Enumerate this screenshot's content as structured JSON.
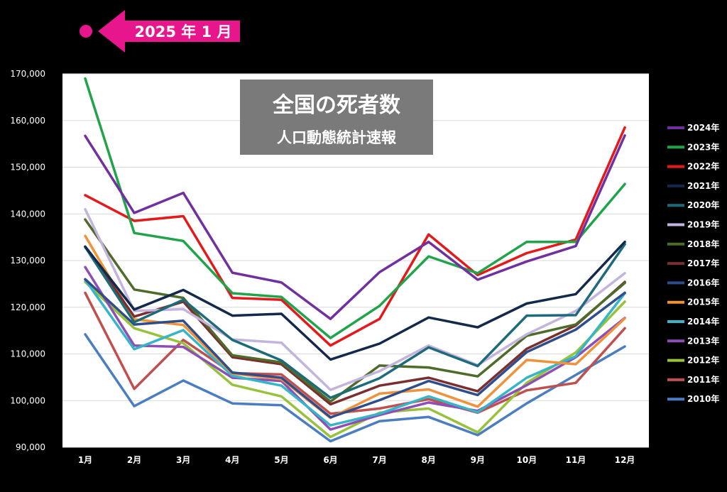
{
  "badge": {
    "text": "2025 年 1 月",
    "color": "#e8168c"
  },
  "chart_data": {
    "type": "line",
    "title": "全国の死者数",
    "subtitle": "人口動態統計速報",
    "categories": [
      "1月",
      "2月",
      "3月",
      "4月",
      "5月",
      "6月",
      "7月",
      "8月",
      "9月",
      "10月",
      "11月",
      "12月"
    ],
    "ylim": [
      90000,
      170000
    ],
    "yticks": [
      "90,000",
      "100,000",
      "110,000",
      "120,000",
      "130,000",
      "140,000",
      "150,000",
      "160,000",
      "170,000"
    ],
    "grid": true,
    "legend_position": "right",
    "series": [
      {
        "name": "2024年",
        "color": "#7030a0",
        "values": [
          156700,
          140200,
          144500,
          127400,
          125300,
          117500,
          127500,
          134000,
          125900,
          129800,
          133100,
          156800
        ]
      },
      {
        "name": "2023年",
        "color": "#1fa44a",
        "values": [
          169000,
          135900,
          134200,
          123000,
          122200,
          113400,
          120300,
          130900,
          127300,
          134000,
          134000,
          146400
        ]
      },
      {
        "name": "2022年",
        "color": "#e3191c",
        "values": [
          144000,
          138500,
          139500,
          122000,
          121600,
          111800,
          117500,
          135600,
          126900,
          131600,
          134500,
          158500
        ]
      },
      {
        "name": "2021年",
        "color": "#13294b",
        "values": [
          133000,
          119500,
          123700,
          118200,
          118600,
          108800,
          112200,
          117800,
          115700,
          120800,
          122800,
          134000
        ]
      },
      {
        "name": "2020年",
        "color": "#1d6b7a",
        "values": [
          132900,
          116800,
          121600,
          113000,
          108600,
          100600,
          104800,
          111400,
          107400,
          118200,
          118300,
          133500
        ]
      },
      {
        "name": "2019年",
        "color": "#c2b4dd",
        "values": [
          141000,
          119200,
          119600,
          113100,
          112400,
          102300,
          106300,
          111800,
          107600,
          114200,
          119200,
          127300
        ]
      },
      {
        "name": "2018年",
        "color": "#4f6b2a",
        "values": [
          138800,
          123800,
          122000,
          109700,
          108200,
          99800,
          107500,
          107100,
          105200,
          113900,
          116300,
          125200
        ]
      },
      {
        "name": "2017年",
        "color": "#7a2e2e",
        "values": [
          132900,
          118000,
          121200,
          109300,
          107800,
          99200,
          103200,
          104900,
          102000,
          111100,
          116100,
          125400
        ]
      },
      {
        "name": "2016年",
        "color": "#2e4d8a",
        "values": [
          126000,
          116300,
          117100,
          106000,
          104900,
          96400,
          100100,
          104200,
          101200,
          110400,
          115200,
          123100
        ]
      },
      {
        "name": "2015年",
        "color": "#f0923a",
        "values": [
          135300,
          117400,
          116200,
          105800,
          104600,
          96300,
          101500,
          102400,
          98700,
          108700,
          107800,
          117600
        ]
      },
      {
        "name": "2014年",
        "color": "#36b4c8",
        "values": [
          125900,
          111000,
          115100,
          105300,
          103200,
          94700,
          97200,
          100900,
          97500,
          104900,
          109500,
          123000
        ]
      },
      {
        "name": "2013年",
        "color": "#8e4fb4",
        "values": [
          128600,
          111800,
          111500,
          104900,
          104200,
          93800,
          96900,
          99600,
          97800,
          103300,
          109300,
          117700
        ]
      },
      {
        "name": "2012年",
        "color": "#98c23c",
        "values": [
          125400,
          115500,
          112300,
          103400,
          100900,
          92200,
          97400,
          98300,
          93200,
          103800,
          110300,
          121200
        ]
      },
      {
        "name": "2011年",
        "color": "#c0504d",
        "values": [
          123100,
          102500,
          113000,
          105900,
          105600,
          97200,
          98300,
          100300,
          97400,
          102200,
          103800,
          115500
        ]
      },
      {
        "name": "2010年",
        "color": "#4a7ec0",
        "values": [
          114200,
          98800,
          104300,
          99400,
          99000,
          91300,
          95600,
          96500,
          92600,
          99400,
          105500,
          111600
        ]
      }
    ]
  }
}
